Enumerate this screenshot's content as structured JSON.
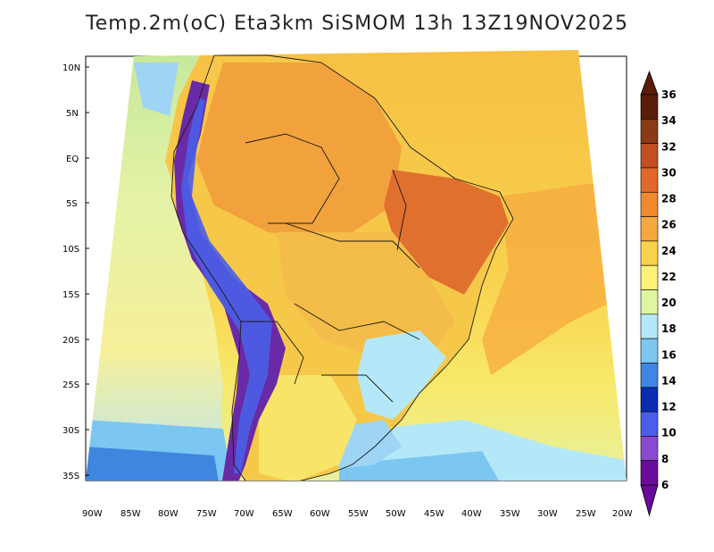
{
  "title": "Temp.2m(oC) Eta3km SiSMOM 13h 13Z19NOV2025",
  "lat_labels": [
    "10N",
    "5N",
    "EQ",
    "5S",
    "10S",
    "15S",
    "20S",
    "25S",
    "30S",
    "35S"
  ],
  "lon_labels": [
    "90W",
    "85W",
    "80W",
    "75W",
    "70W",
    "65W",
    "60W",
    "55W",
    "50W",
    "45W",
    "40W",
    "35W",
    "30W",
    "25W",
    "20W"
  ],
  "colorbar": {
    "labels": [
      "36",
      "34",
      "32",
      "30",
      "28",
      "26",
      "24",
      "22",
      "20",
      "18",
      "16",
      "14",
      "12",
      "10",
      "8",
      "6"
    ],
    "colors": [
      "#5a1d0a",
      "#8b3a16",
      "#c0501e",
      "#e0682a",
      "#f08a30",
      "#f5a840",
      "#f8d24a",
      "#fbf27a",
      "#dff5a0",
      "#b4e8f8",
      "#7cc6f2",
      "#3e86e0",
      "#0a2eb0",
      "#4a5ee8",
      "#8a4ad0",
      "#6a0a9a"
    ]
  },
  "colors": {
    "ocean_warm": "#f6b948",
    "ocean_mid": "#f8e05a",
    "ocean_cool": "#e8f4a6",
    "ocean_cold": "#9ed4f4",
    "land_hot": "#e0702e",
    "land_warm": "#f09a3a",
    "andes_cold": "#6a2aa6"
  }
}
